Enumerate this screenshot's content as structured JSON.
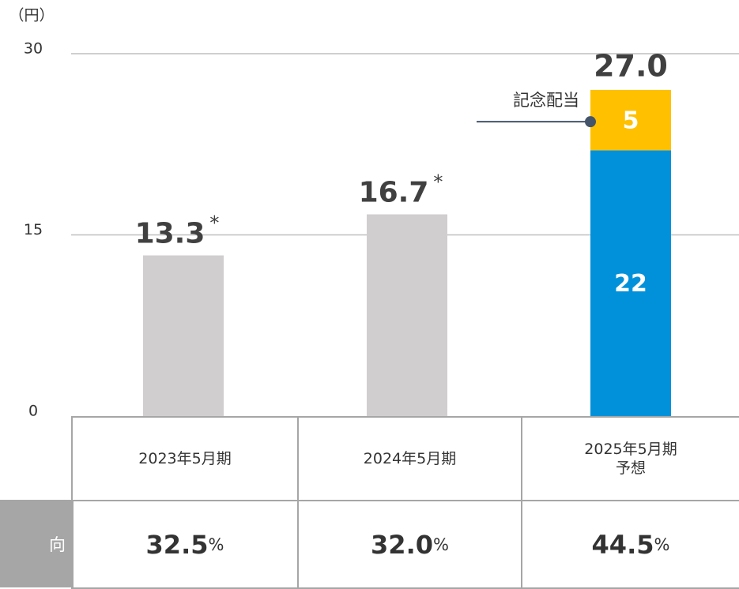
{
  "chart_data": {
    "type": "stacked-bar",
    "y_unit": "（円）",
    "categories": [
      "2023年5月期",
      "2024年5月期",
      "2025年5月期\n予想"
    ],
    "series": [
      {
        "color": "#d0cece",
        "values": [
          13.3,
          16.7,
          null
        ],
        "value_labels": [
          "13.3",
          "16.7",
          null
        ],
        "note_mark": "*"
      },
      {
        "color": "#0091da",
        "values": [
          null,
          null,
          22
        ]
      },
      {
        "name": "記念配当",
        "color": "#ffc000",
        "values": [
          null,
          null,
          5
        ]
      }
    ],
    "total_label": "27.0",
    "ylim": [
      0,
      30
    ],
    "yticks": [
      0,
      15,
      30
    ],
    "grid": true,
    "table": {
      "row_label": "向",
      "values": [
        "32.5",
        "32.0",
        "44.5"
      ],
      "unit": "%"
    }
  }
}
